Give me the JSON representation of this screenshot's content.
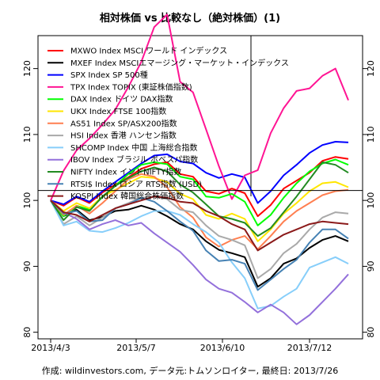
{
  "chart_data": {
    "type": "line",
    "title": "相対株価 vs 比較なし（絶対株価）(1)",
    "footer": "作成: wildinvestors.com, データ元:トムソンロイター, 最終日: 2013/7/26",
    "x_tick_labels": [
      "2013/4/3",
      "2013/5/7",
      "2013/6/10",
      "2013/7/12"
    ],
    "y_ticks": [
      80,
      90,
      100,
      110,
      120
    ],
    "ylim": [
      79,
      125
    ],
    "reference_line": 101.5,
    "grid": false,
    "legend_position": "top-left",
    "x": [
      "4/3",
      "4/8",
      "4/13",
      "4/18",
      "4/23",
      "4/28",
      "5/3",
      "5/8",
      "5/13",
      "5/18",
      "5/23",
      "5/28",
      "6/2",
      "6/7",
      "6/12",
      "6/17",
      "6/22",
      "6/27",
      "7/2",
      "7/7",
      "7/12",
      "7/17",
      "7/22",
      "7/26"
    ],
    "series": [
      {
        "name": "MXWO Index MSCI ワールド インデックス",
        "color": "#ff0000",
        "values": [
          100,
          99.2,
          100.5,
          99.6,
          101.2,
          102.4,
          103.5,
          104.8,
          105.5,
          105.8,
          104.0,
          103.6,
          101.4,
          101.0,
          101.8,
          101.1,
          97.6,
          99.3,
          101.8,
          103.0,
          104.2,
          106.0,
          106.6,
          106.3
        ]
      },
      {
        "name": "MXEF Index MSCIエマージング・マーケット・インデックス",
        "color": "#000000",
        "values": [
          100,
          97.6,
          98.6,
          97.0,
          97.5,
          98.4,
          98.6,
          99.2,
          98.6,
          97.6,
          96.4,
          95.6,
          93.8,
          92.5,
          92.0,
          91.4,
          86.9,
          88.2,
          90.4,
          91.2,
          92.8,
          94.0,
          94.6,
          93.8
        ]
      },
      {
        "name": "SPX Index SP 500種",
        "color": "#0000ff",
        "values": [
          100,
          99.4,
          100.6,
          99.8,
          101.4,
          102.8,
          104.2,
          105.6,
          106.8,
          107.0,
          105.9,
          105.6,
          104.2,
          103.4,
          104.0,
          103.5,
          99.6,
          101.4,
          103.8,
          105.4,
          107.2,
          108.4,
          108.9,
          108.8
        ]
      },
      {
        "name": "TPX Index TOPIX (東証株価指数)",
        "color": "#ff1493",
        "values": [
          100,
          104.5,
          107.6,
          109.4,
          111.5,
          113.8,
          117.2,
          121.0,
          126.3,
          128.2,
          118.0,
          116.4,
          110.8,
          105.2,
          100.2,
          103.8,
          104.6,
          110.2,
          114.0,
          116.6,
          117.0,
          118.9,
          120.0,
          115.2
        ]
      },
      {
        "name": "DAX Index ドイツ DAX指数",
        "color": "#00ff00",
        "values": [
          100,
          97.6,
          99.2,
          98.6,
          100.5,
          102.2,
          104.0,
          105.4,
          105.8,
          105.5,
          103.6,
          103.2,
          100.6,
          100.4,
          101.0,
          99.8,
          96.2,
          97.8,
          100.4,
          102.6,
          104.4,
          105.6,
          106.2,
          105.4
        ]
      },
      {
        "name": "UKX Index FTSE 100指数",
        "color": "#ffe600",
        "values": [
          100,
          98.4,
          99.6,
          98.8,
          100.6,
          101.6,
          102.6,
          103.6,
          103.4,
          102.8,
          101.0,
          100.2,
          97.8,
          97.2,
          98.0,
          97.2,
          93.8,
          95.6,
          98.0,
          99.6,
          101.4,
          102.6,
          102.8,
          102.0
        ]
      },
      {
        "name": "AS51 Index SP/ASX200指数",
        "color": "#ff7f50",
        "values": [
          100,
          97.8,
          99.2,
          98.0,
          99.6,
          101.4,
          103.2,
          104.0,
          103.6,
          102.0,
          99.0,
          97.4,
          94.4,
          93.0,
          94.0,
          94.6,
          92.6,
          94.6,
          96.8,
          98.4,
          99.6,
          100.8,
          101.4,
          101.6
        ]
      },
      {
        "name": "HSI Index 香港 ハンセン指数",
        "color": "#a9a9a9",
        "values": [
          100,
          96.4,
          97.6,
          96.2,
          97.4,
          98.8,
          99.6,
          100.4,
          100.6,
          100.2,
          98.6,
          98.2,
          96.2,
          94.6,
          94.0,
          93.2,
          88.2,
          89.6,
          92.0,
          93.4,
          95.6,
          97.4,
          98.2,
          98.0
        ]
      },
      {
        "name": "SHCOMP Index 中国 上海総合指数",
        "color": "#87cefa",
        "values": [
          100,
          96.2,
          96.8,
          95.4,
          95.2,
          95.8,
          96.6,
          97.6,
          98.4,
          98.4,
          97.8,
          96.4,
          95.2,
          93.6,
          90.6,
          88.2,
          83.6,
          84.0,
          85.4,
          86.6,
          89.8,
          90.6,
          91.4,
          90.4
        ]
      },
      {
        "name": "IBOV Index ブラジル ボベスパ指数",
        "color": "#9370db",
        "values": [
          100,
          98.2,
          97.2,
          95.6,
          96.4,
          97.0,
          96.2,
          96.6,
          95.0,
          93.6,
          92.2,
          90.2,
          88.0,
          86.6,
          86.0,
          84.6,
          83.0,
          84.2,
          83.0,
          81.2,
          82.6,
          84.6,
          86.6,
          88.8
        ]
      },
      {
        "name": "NIFTY Index インドNIFTY指数",
        "color": "#228b22",
        "values": [
          100,
          97.0,
          99.0,
          98.4,
          100.6,
          102.2,
          103.4,
          104.4,
          105.0,
          104.4,
          102.4,
          101.2,
          99.4,
          97.6,
          97.2,
          96.6,
          94.6,
          95.8,
          98.2,
          100.6,
          103.2,
          105.8,
          105.4,
          104.2
        ]
      },
      {
        "name": "RTSI$ Index ロシア RTS指数 (USD)",
        "color": "#4682b4",
        "values": [
          100,
          98.0,
          98.4,
          96.8,
          97.0,
          98.8,
          99.4,
          100.4,
          99.8,
          98.4,
          96.8,
          95.4,
          92.4,
          90.8,
          91.0,
          90.4,
          86.4,
          88.0,
          89.6,
          91.0,
          93.6,
          95.6,
          95.6,
          94.2
        ]
      },
      {
        "name": "KOSPI Index 韓国総合株価指数",
        "color": "#8b1a1a",
        "values": [
          100,
          98.2,
          97.8,
          96.8,
          97.8,
          98.8,
          99.4,
          100.0,
          100.6,
          100.4,
          99.8,
          99.6,
          98.4,
          97.6,
          96.4,
          95.6,
          92.4,
          93.6,
          94.8,
          95.6,
          96.4,
          96.8,
          96.6,
          96.4
        ]
      }
    ]
  }
}
